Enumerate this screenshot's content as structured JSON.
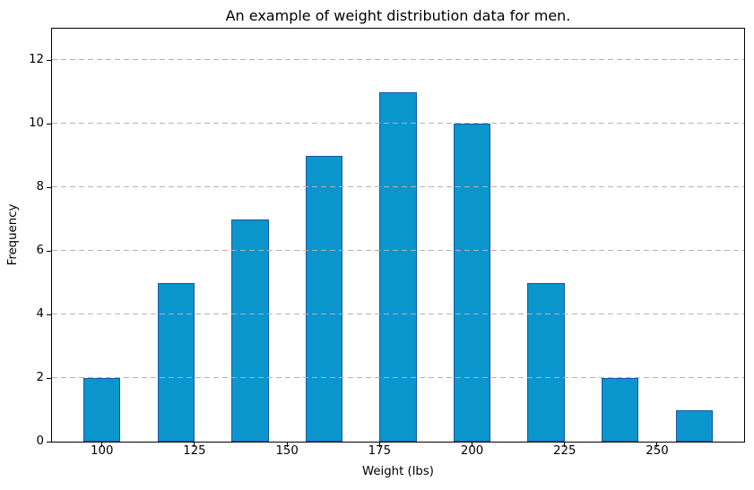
{
  "chart_data": {
    "type": "bar",
    "title": "An example of weight distribution data for men.",
    "xlabel": "Weight (lbs)",
    "ylabel": "Frequency",
    "categories": [
      100,
      120,
      140,
      160,
      180,
      200,
      220,
      240,
      260
    ],
    "values": [
      2,
      5,
      7,
      9,
      11,
      10,
      5,
      2,
      1
    ],
    "bar_width_data_units": 10,
    "xlim": [
      86.5,
      273.5
    ],
    "ylim": [
      0,
      13
    ],
    "xticks": [
      100,
      125,
      150,
      175,
      200,
      225,
      250
    ],
    "yticks": [
      0,
      2,
      4,
      6,
      8,
      10,
      12
    ],
    "grid": {
      "axis": "y",
      "style": "dashed",
      "above_bars": true
    },
    "colors": {
      "bar_fill": "#0a96cd",
      "bar_edge": "#1a55a8",
      "grid": "#b3b3b3",
      "axis": "#000000",
      "text": "#000000",
      "background": "#ffffff"
    }
  }
}
